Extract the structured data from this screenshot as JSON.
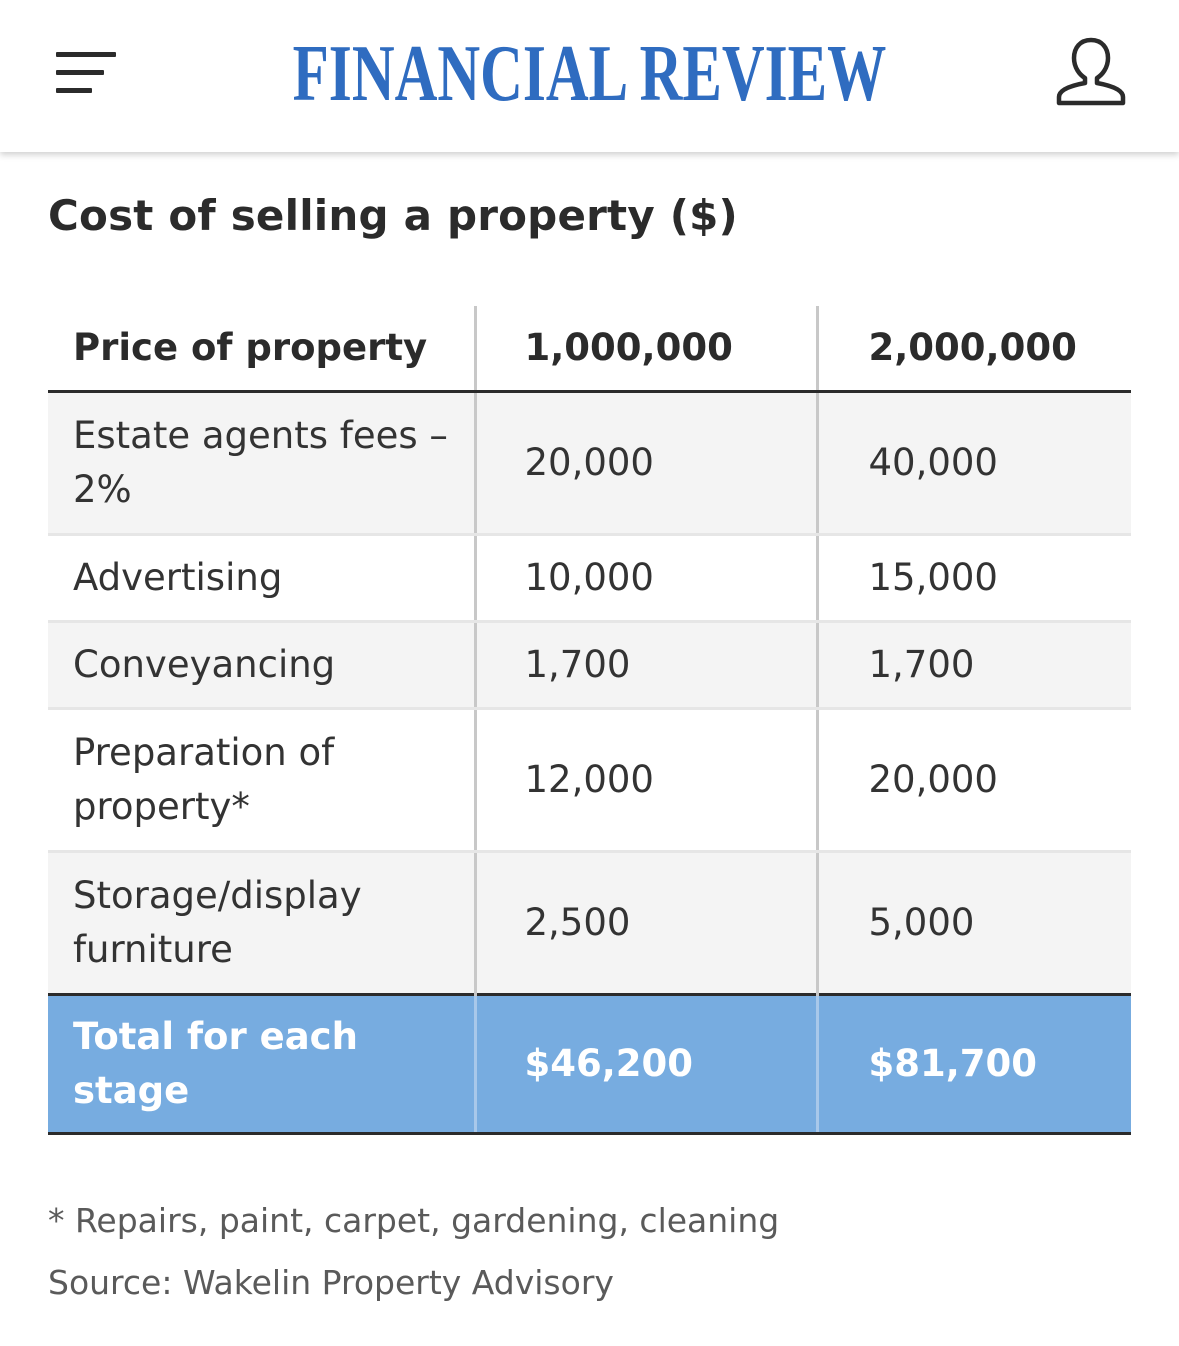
{
  "header": {
    "logo": "FINANCIAL REVIEW",
    "menu_icon": "hamburger-menu-icon",
    "account_icon": "user-account-icon",
    "brand_color": "#2f6cc0"
  },
  "article": {
    "title": "Cost of selling a property ($)",
    "table": {
      "columns": [
        "Price of property",
        "1,000,000",
        "2,000,000"
      ],
      "rows": [
        {
          "label": "Estate agents fees – 2%",
          "v1": "20,000",
          "v2": "40,000"
        },
        {
          "label": "Advertising",
          "v1": "10,000",
          "v2": "15,000"
        },
        {
          "label": "Conveyancing",
          "v1": "1,700",
          "v2": "1,700"
        },
        {
          "label": "Preparation of property*",
          "v1": "12,000",
          "v2": "20,000"
        },
        {
          "label": "Storage/display furniture",
          "v1": "2,500",
          "v2": "5,000"
        }
      ],
      "total": {
        "label": "Total for each stage",
        "v1": "$46,200",
        "v2": "$81,700"
      },
      "total_color": "#77ace0"
    },
    "footnote": "* Repairs, paint, carpet, gardening, cleaning",
    "source": "Source: Wakelin Property Advisory"
  }
}
